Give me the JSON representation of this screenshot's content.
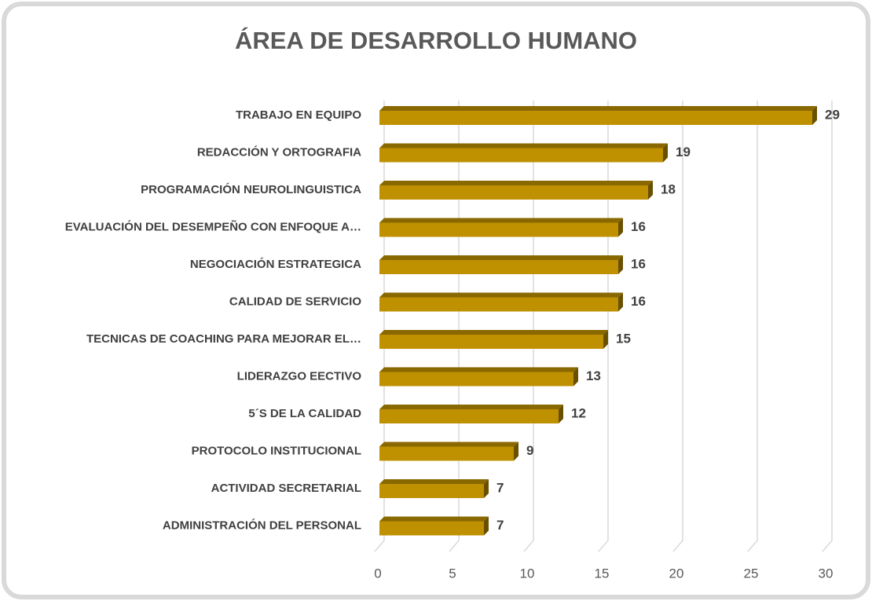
{
  "chart_data": {
    "type": "bar",
    "orientation": "horizontal",
    "title": "ÁREA DE DESARROLLO HUMANO",
    "categories": [
      "TRABAJO EN EQUIPO",
      "REDACCIÓN Y ORTOGRAFIA",
      "PROGRAMACIÓN NEUROLINGUISTICA",
      "EVALUACIÓN DEL DESEMPEÑO CON ENFOQUE A…",
      "NEGOCIACIÓN ESTRATEGICA",
      "CALIDAD DE SERVICIO",
      "TECNICAS DE COACHING PARA MEJORAR EL…",
      "LIDERAZGO EECTIVO",
      "5´S DE LA CALIDAD",
      "PROTOCOLO INSTITUCIONAL",
      "ACTIVIDAD SECRETARIAL",
      "ADMINISTRACIÓN DEL PERSONAL"
    ],
    "values": [
      29,
      19,
      18,
      16,
      16,
      16,
      15,
      13,
      12,
      9,
      7,
      7
    ],
    "color": "#bf9000",
    "xlim": [
      0,
      30
    ],
    "xticks": [
      0,
      5,
      10,
      15,
      20,
      25,
      30
    ],
    "grid": true
  }
}
